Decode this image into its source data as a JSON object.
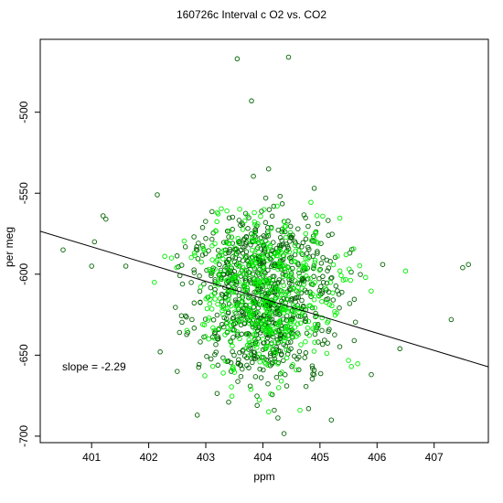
{
  "chart_data": {
    "type": "scatter",
    "title": "160726c   Interval c O2 vs. CO2",
    "xlabel": "ppm",
    "ylabel": "per meg",
    "xlim": [
      400.1,
      407.95
    ],
    "ylim": [
      -704,
      -455
    ],
    "x_ticks": [
      "401",
      "402",
      "403",
      "404",
      "405",
      "406",
      "407"
    ],
    "y_ticks": [
      "-500",
      "-550",
      "-600",
      "-650",
      "-700"
    ],
    "annotation": "slope =  -2.29",
    "fit_line": {
      "x": [
        400.1,
        407.95
      ],
      "y": [
        -573.5,
        -657.2
      ]
    },
    "colors": {
      "dark": "#006400",
      "light": "#00ee00",
      "fit": "#000000"
    },
    "series": [
      {
        "color": "dark",
        "x": [
          400.5,
          401.0,
          401.05,
          401.2,
          401.25,
          401.6,
          402.15,
          403.55,
          403.8,
          404.1,
          404.45,
          404.9,
          405.15,
          406.1,
          407.3,
          407.5,
          407.6,
          403.9,
          404.2,
          404.8,
          402.2,
          402.5,
          405.6,
          405.9,
          406.4,
          402.85,
          403.4,
          405.2,
          404.05,
          403.0
        ],
        "y": [
          -585,
          -595,
          -580,
          -564,
          -566,
          -595,
          -551,
          -467,
          -493,
          -535,
          -466,
          -547,
          -576,
          -594,
          -628,
          -596,
          -594,
          -681,
          -684,
          -683,
          -648,
          -660,
          -641,
          -662,
          -646,
          -687,
          -679,
          -690,
          -553,
          -578
        ]
      },
      {
        "color": "light",
        "x": [
          402.1,
          402.4,
          403.2,
          403.85,
          404.25,
          404.75,
          405.35,
          405.8,
          406.5,
          403.05,
          404.1,
          404.65,
          405.55
        ],
        "y": [
          -605,
          -590,
          -562,
          -562,
          -558,
          -575,
          -598,
          -602,
          -598,
          -640,
          -685,
          -684,
          -657
        ]
      }
    ],
    "dense_cloud": {
      "x_center": 404.05,
      "x_spread": 0.95,
      "y_upper_center": -597,
      "y_lower_center": -632,
      "y_spread": 17,
      "count_dark": 800,
      "count_light": 500
    }
  }
}
